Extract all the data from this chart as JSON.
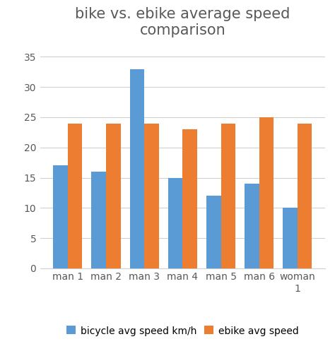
{
  "title": "bike vs. ebike average speed\ncomparison",
  "categories": [
    "man 1",
    "man 2",
    "man 3",
    "man 4",
    "man 5",
    "man 6",
    "woman\n1"
  ],
  "bicycle_values": [
    17,
    16,
    33,
    15,
    12,
    14,
    10
  ],
  "ebike_values": [
    24,
    24,
    24,
    23,
    24,
    25,
    24
  ],
  "bicycle_color": "#5B9BD5",
  "ebike_color": "#ED7D31",
  "bicycle_label": "bicycle avg speed km/h",
  "ebike_label": "ebike avg speed",
  "ylim": [
    0,
    37
  ],
  "yticks": [
    0,
    5,
    10,
    15,
    20,
    25,
    30,
    35
  ],
  "background_color": "#ffffff",
  "grid_color": "#d0d0d0",
  "title_fontsize": 15,
  "tick_fontsize": 10,
  "legend_fontsize": 10,
  "bar_width": 0.38,
  "title_color": "#595959"
}
